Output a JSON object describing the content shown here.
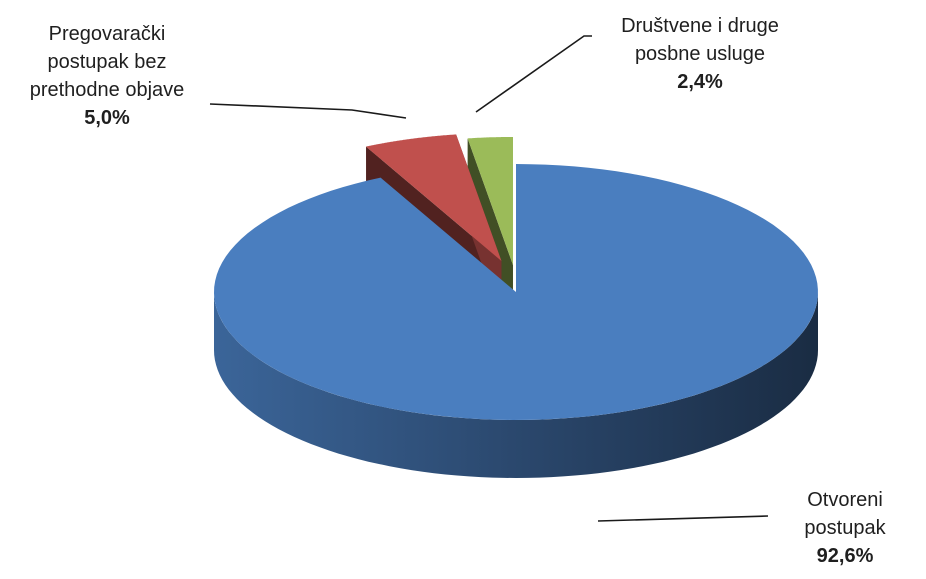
{
  "chart_data": {
    "type": "pie",
    "title": "",
    "style": "3d-exploded",
    "slices": [
      {
        "name": "Otvoreni postupak",
        "label_lines": [
          "Otvoreni",
          "postupak"
        ],
        "value": 92.6,
        "display": "92,6%",
        "color": "#4a7ebf"
      },
      {
        "name": "Pregovarački postupak bez prethodne objave",
        "label_lines": [
          "Pregovarački",
          "postupak bez",
          "prethodne objave"
        ],
        "value": 5.0,
        "display": "5,0%",
        "color": "#c0504d"
      },
      {
        "name": "Društvene i druge posbne usluge",
        "label_lines": [
          "Društvene i druge",
          "posbne usluge"
        ],
        "value": 2.4,
        "display": "2,4%",
        "color": "#9bbb59"
      }
    ]
  }
}
